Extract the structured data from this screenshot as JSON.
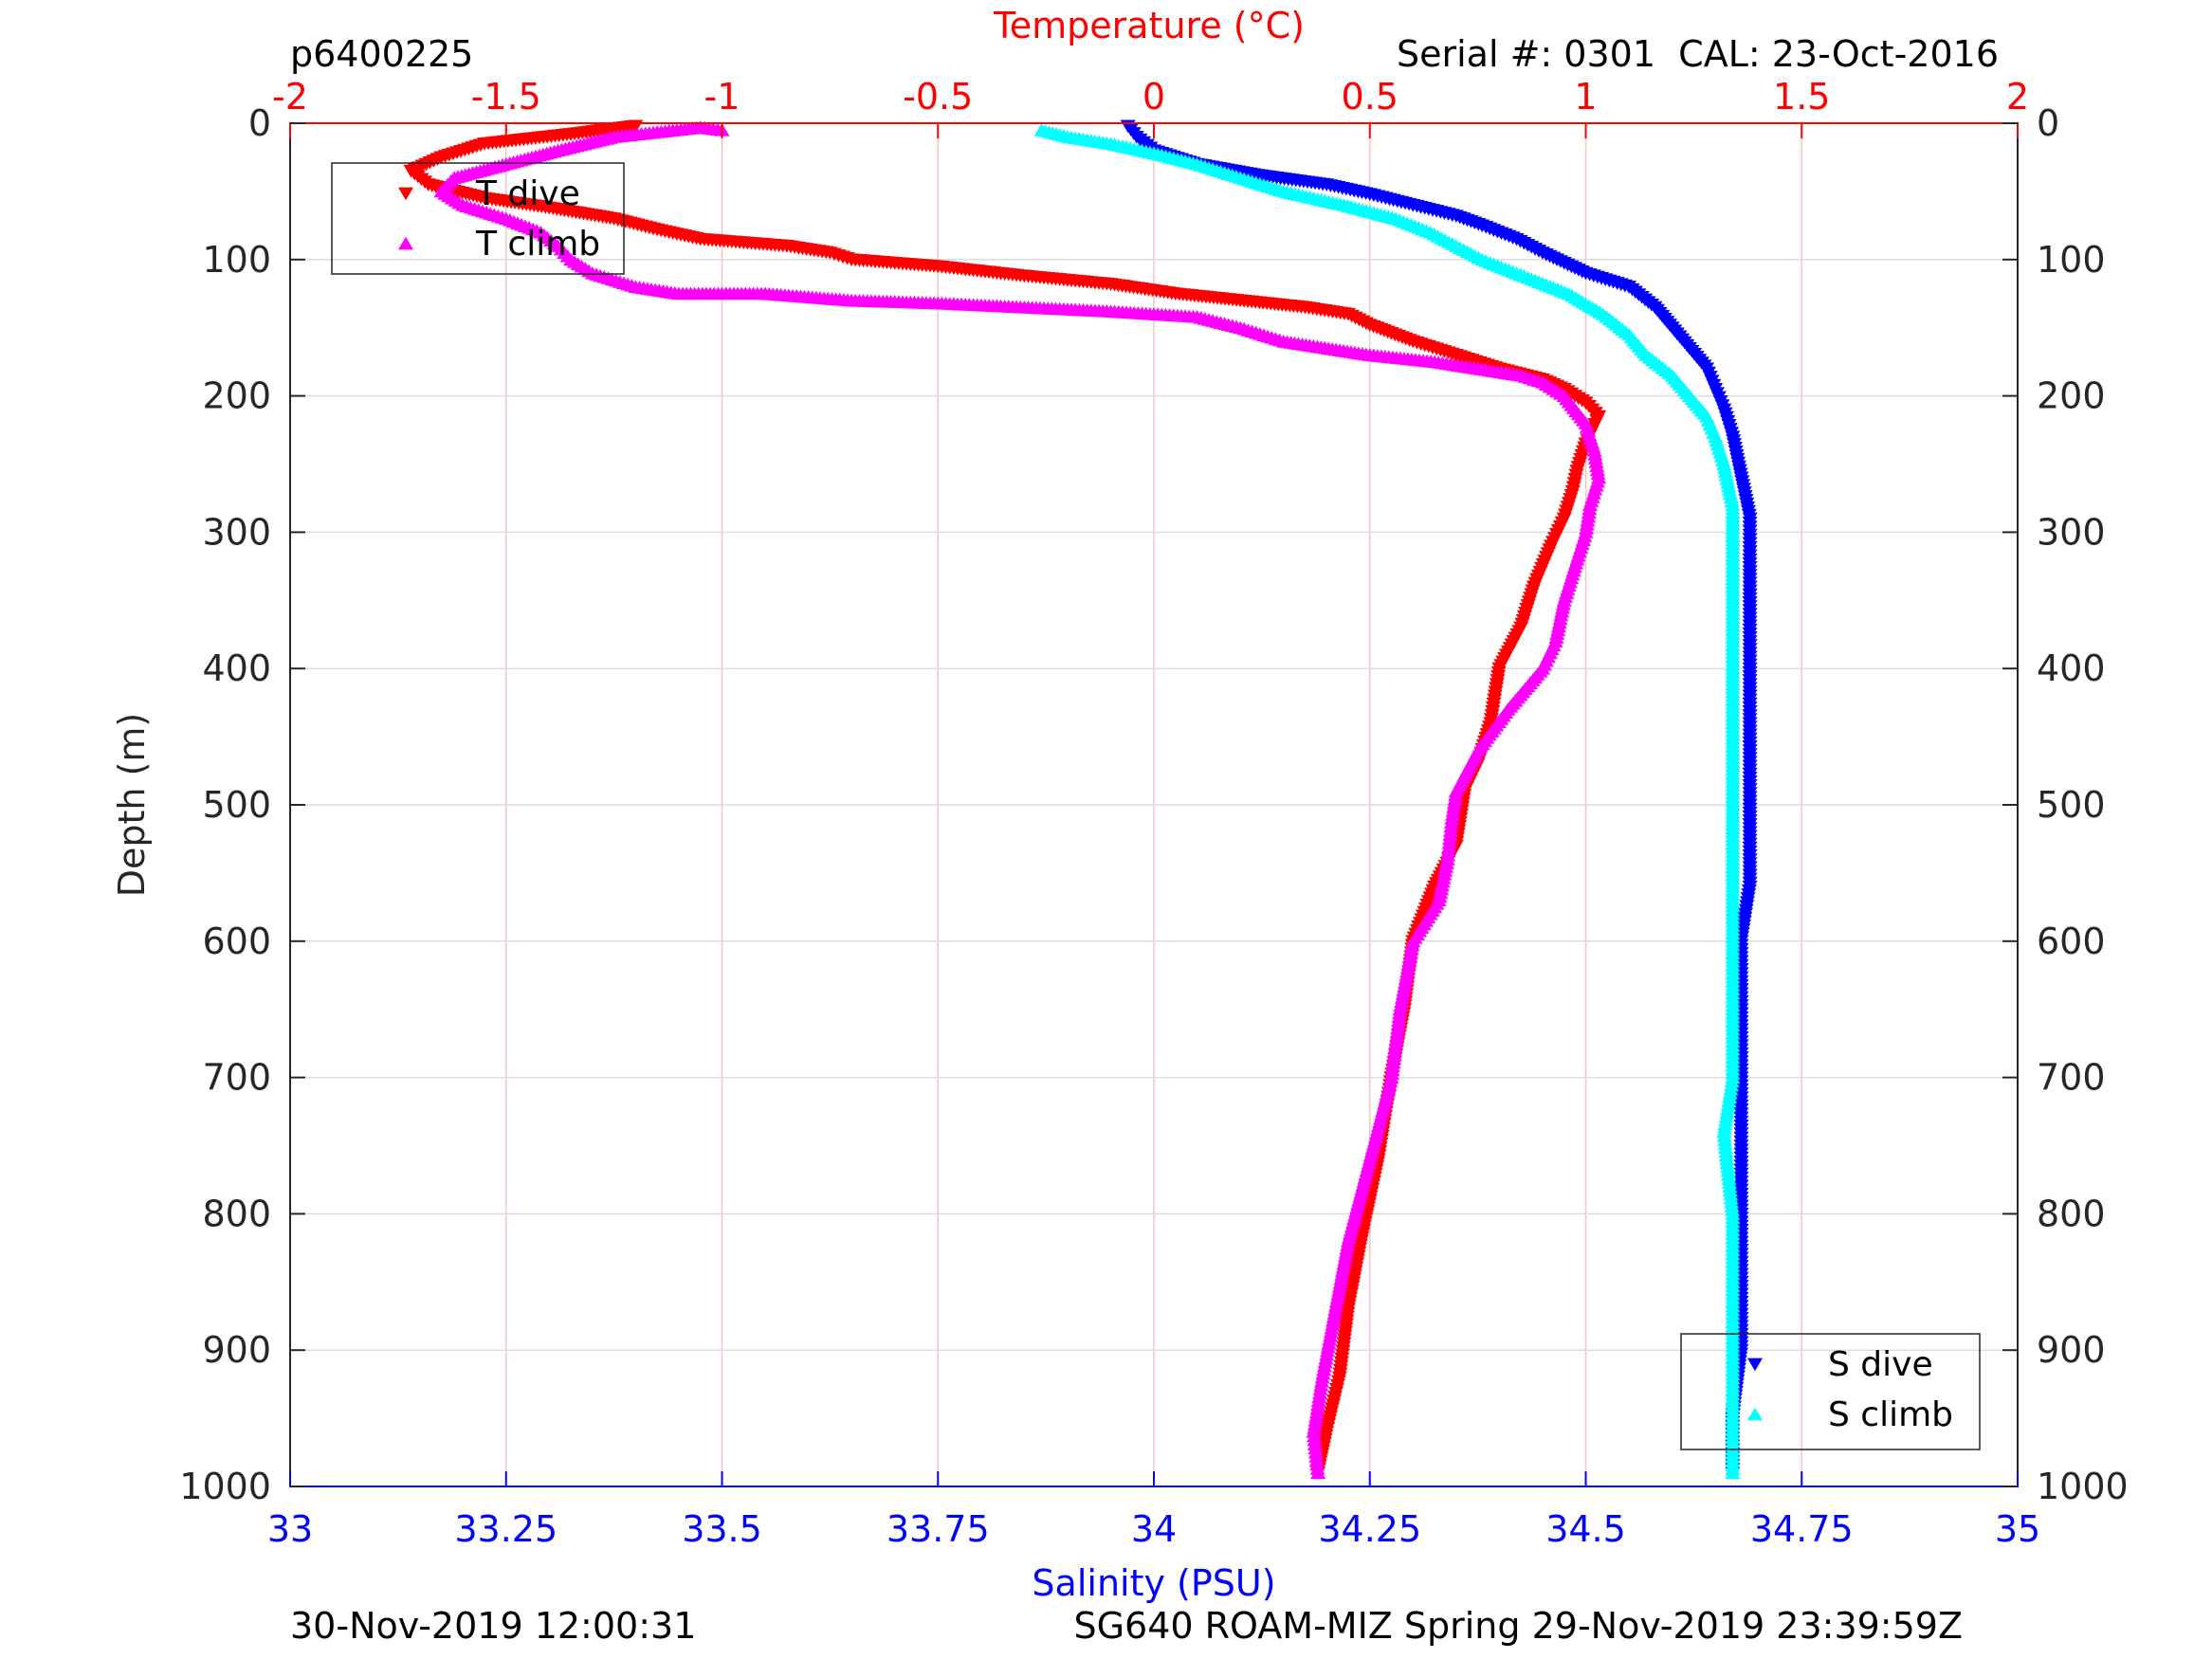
{
  "chart_data": {
    "type": "scatter",
    "top_title": "Temperature (°C)",
    "id_label": "p6400225",
    "serial_label": "Serial #: 0301  CAL: 23-Oct-2016",
    "ylabel": "Depth (m)",
    "xlabel_bottom": "Salinity (PSU)",
    "footer_left": "30-Nov-2019 12:00:31",
    "footer_right": "SG640 ROAM-MIZ Spring 29-Nov-2019 23:39:59Z",
    "temperature_axis": {
      "range": [
        -2,
        2
      ],
      "ticks": [
        -2,
        -1.5,
        -1,
        -0.5,
        0,
        0.5,
        1,
        1.5,
        2
      ],
      "tick_labels": [
        "-2",
        "-1.5",
        "-1",
        "-0.5",
        "0",
        "0.5",
        "1",
        "1.5",
        "2"
      ],
      "color": "#ff0000",
      "grid": true
    },
    "salinity_axis": {
      "range": [
        33,
        35
      ],
      "ticks": [
        33,
        33.25,
        33.5,
        33.75,
        34,
        34.25,
        34.5,
        34.75,
        35
      ],
      "tick_labels": [
        "33",
        "33.25",
        "33.5",
        "33.75",
        "34",
        "34.25",
        "34.5",
        "34.75",
        "35"
      ],
      "color": "#0000ff"
    },
    "depth_axis": {
      "range": [
        0,
        1000
      ],
      "reversed": true,
      "ticks": [
        0,
        100,
        200,
        300,
        400,
        500,
        600,
        700,
        800,
        900,
        1000
      ],
      "tick_labels": [
        "0",
        "100",
        "200",
        "300",
        "400",
        "500",
        "600",
        "700",
        "800",
        "900",
        "1000"
      ],
      "grid": true
    },
    "legends": [
      {
        "position": "top-left",
        "entries": [
          {
            "label": "T dive",
            "marker": "triangle-down",
            "color": "#ff0000"
          },
          {
            "label": "T climb",
            "marker": "triangle-up",
            "color": "#ff00ff"
          }
        ]
      },
      {
        "position": "bottom-right",
        "entries": [
          {
            "label": "S dive",
            "marker": "triangle-down",
            "color": "#0000ff"
          },
          {
            "label": "S climb",
            "marker": "triangle-up",
            "color": "#00ffff"
          }
        ]
      }
    ],
    "series": [
      {
        "name": "T dive",
        "axis": "temperature",
        "marker": "triangle-down",
        "color": "#ff0000",
        "points": [
          [
            -1.2,
            2
          ],
          [
            -1.35,
            8
          ],
          [
            -1.55,
            15
          ],
          [
            -1.65,
            25
          ],
          [
            -1.72,
            35
          ],
          [
            -1.68,
            45
          ],
          [
            -1.55,
            55
          ],
          [
            -1.4,
            62
          ],
          [
            -1.25,
            70
          ],
          [
            -1.15,
            78
          ],
          [
            -1.05,
            85
          ],
          [
            -0.85,
            90
          ],
          [
            -0.75,
            95
          ],
          [
            -0.7,
            100
          ],
          [
            -0.5,
            105
          ],
          [
            -0.3,
            112
          ],
          [
            -0.1,
            118
          ],
          [
            0.05,
            125
          ],
          [
            0.2,
            130
          ],
          [
            0.35,
            135
          ],
          [
            0.45,
            140
          ],
          [
            0.5,
            148
          ],
          [
            0.6,
            160
          ],
          [
            0.7,
            170
          ],
          [
            0.8,
            180
          ],
          [
            0.9,
            188
          ],
          [
            0.95,
            195
          ],
          [
            1.0,
            205
          ],
          [
            1.03,
            215
          ],
          [
            1.0,
            235
          ],
          [
            0.98,
            255
          ],
          [
            0.97,
            270
          ],
          [
            0.95,
            290
          ],
          [
            0.92,
            310
          ],
          [
            0.88,
            340
          ],
          [
            0.85,
            370
          ],
          [
            0.8,
            400
          ],
          [
            0.78,
            440
          ],
          [
            0.75,
            470
          ],
          [
            0.72,
            490
          ],
          [
            0.7,
            530
          ],
          [
            0.65,
            560
          ],
          [
            0.6,
            600
          ],
          [
            0.58,
            650
          ],
          [
            0.55,
            700
          ],
          [
            0.52,
            760
          ],
          [
            0.48,
            820
          ],
          [
            0.45,
            870
          ],
          [
            0.43,
            920
          ],
          [
            0.4,
            960
          ],
          [
            0.38,
            990
          ]
        ]
      },
      {
        "name": "T climb",
        "axis": "temperature",
        "marker": "triangle-up",
        "color": "#ff00ff",
        "points": [
          [
            -1.0,
            5
          ],
          [
            -1.05,
            3
          ],
          [
            -1.25,
            10
          ],
          [
            -1.38,
            20
          ],
          [
            -1.5,
            30
          ],
          [
            -1.62,
            40
          ],
          [
            -1.65,
            50
          ],
          [
            -1.6,
            60
          ],
          [
            -1.5,
            70
          ],
          [
            -1.42,
            80
          ],
          [
            -1.38,
            90
          ],
          [
            -1.35,
            100
          ],
          [
            -1.3,
            110
          ],
          [
            -1.2,
            120
          ],
          [
            -1.1,
            125
          ],
          [
            -0.9,
            125
          ],
          [
            -0.7,
            130
          ],
          [
            -0.5,
            132
          ],
          [
            -0.3,
            135
          ],
          [
            -0.1,
            138
          ],
          [
            0.1,
            142
          ],
          [
            0.2,
            150
          ],
          [
            0.3,
            160
          ],
          [
            0.5,
            170
          ],
          [
            0.65,
            175
          ],
          [
            0.75,
            180
          ],
          [
            0.85,
            185
          ],
          [
            0.9,
            190
          ],
          [
            0.95,
            200
          ],
          [
            1.0,
            220
          ],
          [
            1.02,
            240
          ],
          [
            1.03,
            260
          ],
          [
            1.01,
            280
          ],
          [
            1.0,
            300
          ],
          [
            0.98,
            320
          ],
          [
            0.95,
            350
          ],
          [
            0.93,
            380
          ],
          [
            0.9,
            400
          ],
          [
            0.82,
            430
          ],
          [
            0.75,
            460
          ],
          [
            0.7,
            490
          ],
          [
            0.69,
            510
          ],
          [
            0.68,
            540
          ],
          [
            0.66,
            570
          ],
          [
            0.6,
            600
          ],
          [
            0.57,
            650
          ],
          [
            0.55,
            700
          ],
          [
            0.5,
            760
          ],
          [
            0.45,
            820
          ],
          [
            0.42,
            870
          ],
          [
            0.39,
            920
          ],
          [
            0.37,
            960
          ],
          [
            0.38,
            990
          ]
        ]
      },
      {
        "name": "S dive",
        "axis": "salinity",
        "marker": "triangle-down",
        "color": "#0000ff",
        "points": [
          [
            33.97,
            2
          ],
          [
            33.98,
            10
          ],
          [
            34.0,
            20
          ],
          [
            34.05,
            30
          ],
          [
            34.12,
            38
          ],
          [
            34.2,
            45
          ],
          [
            34.25,
            52
          ],
          [
            34.3,
            60
          ],
          [
            34.35,
            68
          ],
          [
            34.38,
            75
          ],
          [
            34.42,
            85
          ],
          [
            34.45,
            95
          ],
          [
            34.5,
            110
          ],
          [
            34.55,
            120
          ],
          [
            34.58,
            135
          ],
          [
            34.6,
            150
          ],
          [
            34.62,
            165
          ],
          [
            34.64,
            180
          ],
          [
            34.65,
            195
          ],
          [
            34.66,
            210
          ],
          [
            34.67,
            230
          ],
          [
            34.68,
            260
          ],
          [
            34.69,
            290
          ],
          [
            34.69,
            320
          ],
          [
            34.69,
            360
          ],
          [
            34.69,
            400
          ],
          [
            34.69,
            440
          ],
          [
            34.69,
            480
          ],
          [
            34.69,
            520
          ],
          [
            34.69,
            560
          ],
          [
            34.68,
            600
          ],
          [
            34.68,
            650
          ],
          [
            34.68,
            700
          ],
          [
            34.68,
            750
          ],
          [
            34.68,
            800
          ],
          [
            34.68,
            850
          ],
          [
            34.68,
            900
          ],
          [
            34.67,
            950
          ],
          [
            34.67,
            990
          ]
        ]
      },
      {
        "name": "S climb",
        "axis": "salinity",
        "marker": "triangle-up",
        "color": "#00ffff",
        "points": [
          [
            33.87,
            5
          ],
          [
            33.9,
            10
          ],
          [
            33.95,
            15
          ],
          [
            34.0,
            22
          ],
          [
            34.05,
            30
          ],
          [
            34.1,
            40
          ],
          [
            34.15,
            50
          ],
          [
            34.22,
            60
          ],
          [
            34.28,
            70
          ],
          [
            34.32,
            80
          ],
          [
            34.35,
            90
          ],
          [
            34.38,
            100
          ],
          [
            34.42,
            110
          ],
          [
            34.48,
            125
          ],
          [
            34.52,
            140
          ],
          [
            34.55,
            155
          ],
          [
            34.57,
            170
          ],
          [
            34.6,
            185
          ],
          [
            34.62,
            200
          ],
          [
            34.64,
            215
          ],
          [
            34.65,
            230
          ],
          [
            34.66,
            250
          ],
          [
            34.67,
            280
          ],
          [
            34.67,
            320
          ],
          [
            34.67,
            360
          ],
          [
            34.67,
            400
          ],
          [
            34.67,
            440
          ],
          [
            34.67,
            480
          ],
          [
            34.67,
            520
          ],
          [
            34.67,
            560
          ],
          [
            34.67,
            600
          ],
          [
            34.67,
            650
          ],
          [
            34.67,
            700
          ],
          [
            34.66,
            740
          ],
          [
            34.67,
            800
          ],
          [
            34.67,
            850
          ],
          [
            34.67,
            900
          ],
          [
            34.67,
            950
          ],
          [
            34.67,
            990
          ]
        ]
      }
    ]
  }
}
